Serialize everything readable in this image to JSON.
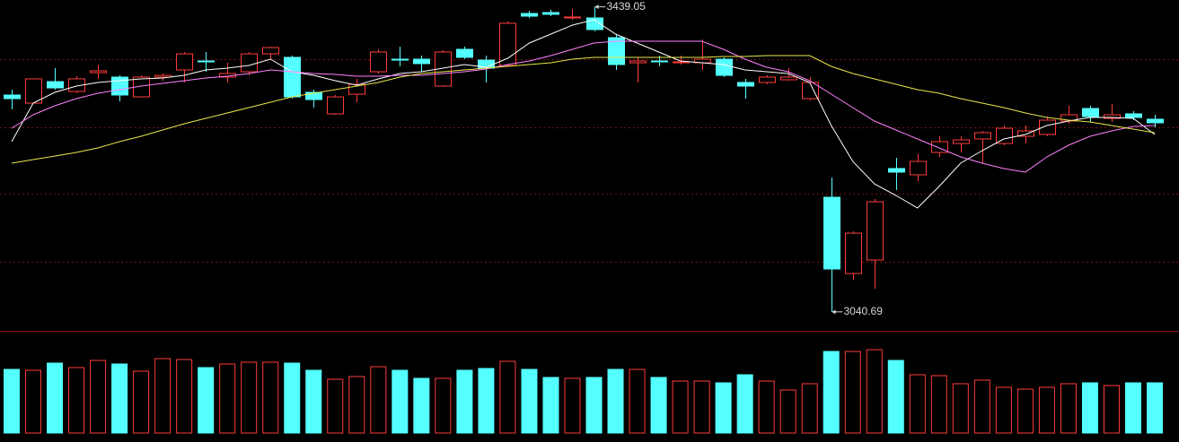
{
  "chart_data": {
    "type": "candlestick",
    "ylim": [
      3017.1,
      3448
    ],
    "up_color": "#ff3c3c",
    "down_color": "#54ffff",
    "open": [
      3323.9,
      3313.3,
      3341.4,
      3328.6,
      3353.1,
      3347.3,
      3321.5,
      3347.3,
      3356.7,
      3368.4,
      3347.3,
      3354.3,
      3377.7,
      3373.1,
      3327.4,
      3299.3,
      3325.0,
      3354.3,
      3370.7,
      3370.7,
      3335.6,
      3383.6,
      3369.5,
      3362.5,
      3430.4,
      3431.6,
      3424.6,
      3424.6,
      3398.8,
      3366.0,
      3368.4,
      3366.0,
      3366.0,
      3370.7,
      3340.3,
      3340.3,
      3343.8,
      3319.2,
      3190.4,
      3090.8,
      3108.4,
      3227.9,
      3219.7,
      3248.9,
      3260.6,
      3266.5,
      3260.6,
      3270.0,
      3272.4,
      3289.9,
      3306.3,
      3293.4,
      3299.3,
      3292.3
    ],
    "high": [
      3330.9,
      3345.0,
      3359.0,
      3348.5,
      3363.7,
      3349.6,
      3349.6,
      3352.0,
      3380.1,
      3380.1,
      3366.0,
      3380.1,
      3387.1,
      3375.4,
      3330.9,
      3323.9,
      3345.0,
      3383.6,
      3387.1,
      3375.4,
      3382.4,
      3387.1,
      3375.4,
      3419.9,
      3433.9,
      3435.1,
      3436.3,
      3439.05,
      3403.5,
      3373.1,
      3375.4,
      3375.4,
      3396.5,
      3373.1,
      3345.0,
      3349.6,
      3359.0,
      3347.3,
      3216.1,
      3145.9,
      3188.0,
      3241.9,
      3246.6,
      3270.0,
      3270.0,
      3277.0,
      3284.1,
      3284.1,
      3295.8,
      3309.8,
      3309.8,
      3312.2,
      3302.8,
      3298.1
    ],
    "low": [
      3305.1,
      3313.3,
      3330.9,
      3326.2,
      3345.0,
      3315.7,
      3321.5,
      3342.6,
      3340.3,
      3354.3,
      3340.3,
      3349.6,
      3370.7,
      3319.2,
      3307.5,
      3298.1,
      3314.5,
      3352.0,
      3361.3,
      3354.3,
      3334.4,
      3370.7,
      3340.3,
      3362.5,
      3424.6,
      3426.9,
      3422.2,
      3407.0,
      3356.7,
      3340.3,
      3361.3,
      3363.7,
      3356.7,
      3347.3,
      3319.2,
      3337.9,
      3342.6,
      3316.8,
      3040.69,
      3082.6,
      3070.9,
      3199.7,
      3211.5,
      3243.1,
      3248.9,
      3234.9,
      3258.3,
      3260.6,
      3270.0,
      3286.4,
      3288.7,
      3288.7,
      3291.1,
      3281.7
    ],
    "close": [
      3319.2,
      3345.0,
      3333.2,
      3345.0,
      3355.5,
      3323.9,
      3347.3,
      3349.6,
      3377.7,
      3367.2,
      3352.0,
      3377.7,
      3385.9,
      3321.5,
      3318.0,
      3321.5,
      3337.9,
      3380.1,
      3369.5,
      3364.9,
      3380.1,
      3373.1,
      3359.0,
      3417.6,
      3426.9,
      3429.3,
      3425.8,
      3409.4,
      3363.7,
      3368.4,
      3367.2,
      3367.2,
      3370.7,
      3349.6,
      3335.6,
      3347.3,
      3347.3,
      3340.3,
      3096.7,
      3143.5,
      3184.5,
      3223.2,
      3237.2,
      3263.0,
      3265.3,
      3274.7,
      3280.5,
      3277.0,
      3291.1,
      3298.1,
      3295.8,
      3298.1,
      3294.6,
      3287.6
    ],
    "series": [
      {
        "color": "#ffffff",
        "values": [
          3263.0,
          3313.3,
          3327.4,
          3335.6,
          3340.3,
          3342.6,
          3345.0,
          3346.1,
          3349.6,
          3356.7,
          3359.0,
          3362.5,
          3370.7,
          3354.3,
          3349.6,
          3342.6,
          3336.8,
          3345.0,
          3352.0,
          3354.3,
          3359.0,
          3363.7,
          3360.2,
          3371.9,
          3391.8,
          3403.5,
          3415.2,
          3422.2,
          3403.5,
          3391.8,
          3380.1,
          3368.4,
          3366.0,
          3363.7,
          3356.7,
          3354.3,
          3352.0,
          3340.3,
          3284.1,
          3237.2,
          3207.9,
          3192.7,
          3176.3,
          3204.4,
          3234.9,
          3251.3,
          3266.5,
          3272.4,
          3284.1,
          3289.9,
          3294.6,
          3294.6,
          3293.4,
          3272.4
        ]
      },
      {
        "color": "#ff80ff",
        "values": [
          3280.5,
          3298.1,
          3309.8,
          3319.2,
          3326.2,
          3330.9,
          3335.6,
          3339.1,
          3342.6,
          3346.1,
          3348.5,
          3352.0,
          3356.7,
          3354.3,
          3352.0,
          3350.8,
          3348.5,
          3348.5,
          3349.6,
          3349.6,
          3352.0,
          3354.3,
          3357.8,
          3363.7,
          3368.4,
          3375.4,
          3383.6,
          3391.8,
          3394.1,
          3394.1,
          3394.1,
          3394.1,
          3394.1,
          3383.6,
          3370.7,
          3360.2,
          3354.3,
          3342.6,
          3325.0,
          3307.5,
          3289.9,
          3278.2,
          3266.5,
          3254.8,
          3243.1,
          3234.9,
          3227.9,
          3223.2,
          3243.1,
          3258.3,
          3270.0,
          3277.0,
          3282.9,
          3284.1
        ]
      },
      {
        "color": "#e8e84a",
        "values": [
          3234.9,
          3239.6,
          3244.2,
          3248.9,
          3254.8,
          3263.0,
          3270.0,
          3278.2,
          3286.4,
          3293.4,
          3300.5,
          3307.5,
          3314.5,
          3321.5,
          3326.2,
          3330.9,
          3335.6,
          3340.3,
          3347.3,
          3352.0,
          3354.3,
          3356.7,
          3359.0,
          3361.3,
          3363.7,
          3366.0,
          3370.7,
          3373.1,
          3373.1,
          3373.1,
          3373.1,
          3373.1,
          3373.1,
          3374.2,
          3374.2,
          3375.4,
          3375.4,
          3375.4,
          3361.3,
          3352.0,
          3345.0,
          3337.9,
          3330.9,
          3326.2,
          3319.2,
          3313.3,
          3307.5,
          3300.5,
          3294.6,
          3291.1,
          3288.7,
          3284.1,
          3279.4,
          3274.7
        ]
      }
    ],
    "volume": {
      "ylim": [
        0,
        114
      ],
      "values": [
        71,
        70,
        78,
        73,
        81,
        77,
        69,
        83,
        82,
        73,
        77,
        79,
        79,
        78,
        70,
        60,
        63,
        74,
        70,
        61,
        61,
        70,
        72,
        80,
        71,
        62,
        61,
        62,
        71,
        71,
        62,
        58,
        58,
        56,
        65,
        58,
        48,
        55,
        91,
        91,
        93,
        81,
        65,
        64,
        55,
        59,
        51,
        49,
        51,
        55,
        56,
        53,
        56,
        56
      ]
    },
    "annotations": [
      "3439.05",
      "3040.69"
    ]
  }
}
